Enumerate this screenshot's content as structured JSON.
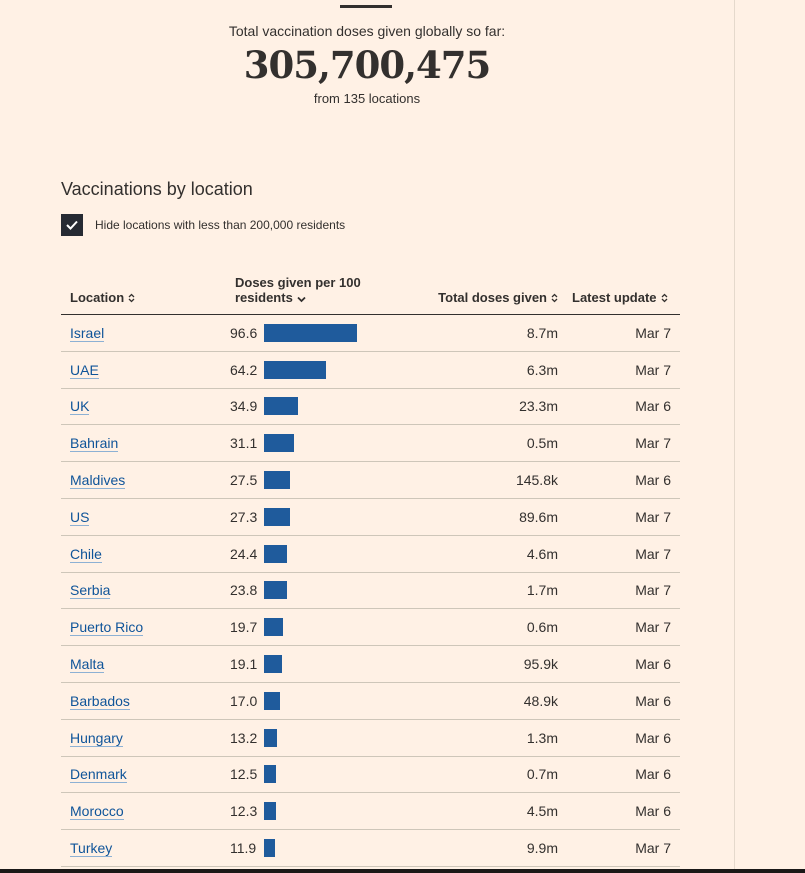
{
  "summary": {
    "label": "Total vaccination doses given globally so far:",
    "total": "305,700,475",
    "sub": "from 135 locations"
  },
  "section": {
    "title": "Vaccinations by location"
  },
  "filter": {
    "label": "Hide locations with less than 200,000 residents",
    "checked": true
  },
  "table": {
    "headers": {
      "location": "Location",
      "doses_line1": "Doses given per 100",
      "doses_line2": "residents",
      "total": "Total doses given",
      "update": "Latest update"
    },
    "max_dose": 96.6,
    "rows": [
      {
        "location": "Israel",
        "per100": "96.6",
        "total": "8.7m",
        "update": "Mar 7"
      },
      {
        "location": "UAE",
        "per100": "64.2",
        "total": "6.3m",
        "update": "Mar 7"
      },
      {
        "location": "UK",
        "per100": "34.9",
        "total": "23.3m",
        "update": "Mar 6"
      },
      {
        "location": "Bahrain",
        "per100": "31.1",
        "total": "0.5m",
        "update": "Mar 7"
      },
      {
        "location": "Maldives",
        "per100": "27.5",
        "total": "145.8k",
        "update": "Mar 6"
      },
      {
        "location": "US",
        "per100": "27.3",
        "total": "89.6m",
        "update": "Mar 7"
      },
      {
        "location": "Chile",
        "per100": "24.4",
        "total": "4.6m",
        "update": "Mar 7"
      },
      {
        "location": "Serbia",
        "per100": "23.8",
        "total": "1.7m",
        "update": "Mar 7"
      },
      {
        "location": "Puerto Rico",
        "per100": "19.7",
        "total": "0.6m",
        "update": "Mar 7"
      },
      {
        "location": "Malta",
        "per100": "19.1",
        "total": "95.9k",
        "update": "Mar 6"
      },
      {
        "location": "Barbados",
        "per100": "17.0",
        "total": "48.9k",
        "update": "Mar 6"
      },
      {
        "location": "Hungary",
        "per100": "13.2",
        "total": "1.3m",
        "update": "Mar 6"
      },
      {
        "location": "Denmark",
        "per100": "12.5",
        "total": "0.7m",
        "update": "Mar 6"
      },
      {
        "location": "Morocco",
        "per100": "12.3",
        "total": "4.5m",
        "update": "Mar 6"
      },
      {
        "location": "Turkey",
        "per100": "11.9",
        "total": "9.9m",
        "update": "Mar 7"
      }
    ]
  },
  "colors": {
    "background": "#FFF1E5",
    "bar": "#1F5B9C",
    "link": "#0F5499",
    "text": "#33302E"
  }
}
